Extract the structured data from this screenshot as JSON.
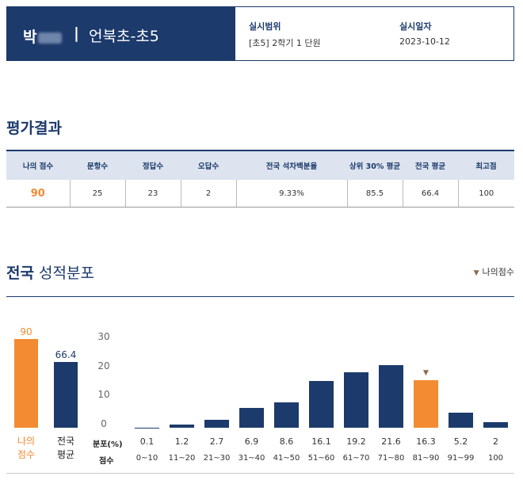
{
  "header": {
    "student_surname": "박",
    "school_class": "언북초-초5",
    "scope_label": "실시범위",
    "scope_value": "[초5] 2학기 1 단원",
    "date_label": "실시일자",
    "date_value": "2023-10-12"
  },
  "results": {
    "title": "평가결과",
    "columns": [
      "나의 점수",
      "문항수",
      "정답수",
      "오답수",
      "전국 석차백분율",
      "상위 30% 평균",
      "전국 평균",
      "최고점"
    ],
    "values": [
      "90",
      "25",
      "23",
      "2",
      "9.33%",
      "85.5",
      "66.4",
      "100"
    ]
  },
  "distribution": {
    "title_bold": "전국",
    "title_rest": " 성적분포",
    "legend_label": "나의점수",
    "row_label_dist": "분포(%)",
    "row_label_score": "점수"
  },
  "colors": {
    "navy": "#1c3a6b",
    "orange": "#f28b32",
    "header_bg": "#dde4ef"
  },
  "chart_data": {
    "type": "bar",
    "summary": {
      "categories": [
        "나의\n점수",
        "전국\n평균"
      ],
      "values": [
        90,
        66.4
      ],
      "colors": [
        "#f28b32",
        "#1c3a6b"
      ]
    },
    "distribution": {
      "categories": [
        "0~10",
        "11~20",
        "21~30",
        "31~40",
        "41~50",
        "51~60",
        "61~70",
        "71~80",
        "81~90",
        "91~99",
        "100"
      ],
      "values": [
        0.1,
        1.2,
        2.7,
        6.9,
        8.6,
        16.1,
        19.2,
        21.6,
        16.3,
        5.2,
        2
      ],
      "labels": [
        "0.1",
        "1.2",
        "2.7",
        "6.9",
        "8.6",
        "16.1",
        "19.2",
        "21.6",
        "16.3",
        "5.2",
        "2"
      ],
      "highlight_index": 8,
      "yticks": [
        0,
        10,
        20,
        30
      ],
      "ylim": [
        0,
        30
      ]
    }
  }
}
